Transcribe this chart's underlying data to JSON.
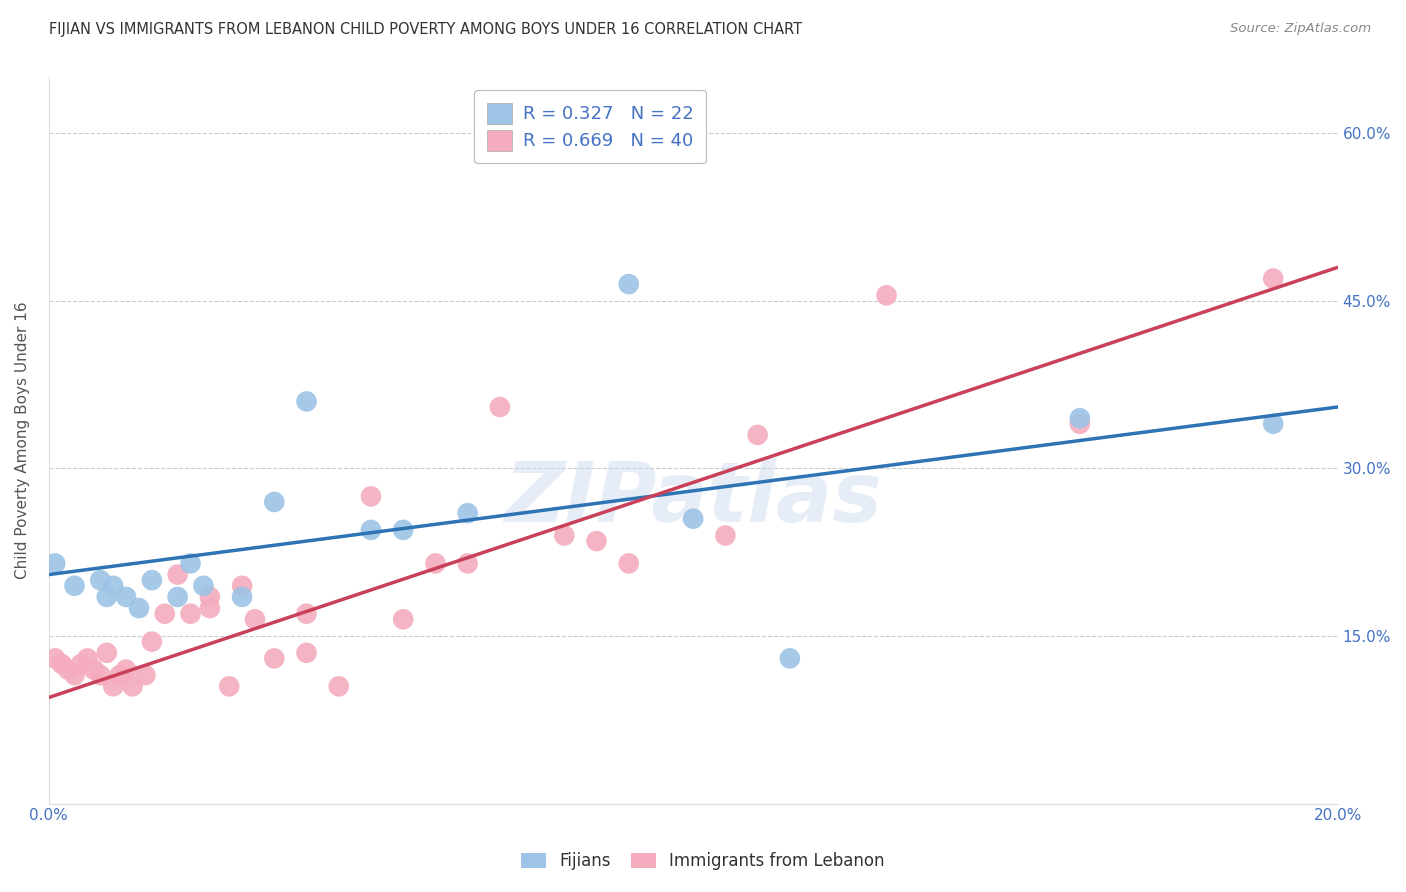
{
  "title": "FIJIAN VS IMMIGRANTS FROM LEBANON CHILD POVERTY AMONG BOYS UNDER 16 CORRELATION CHART",
  "source": "Source: ZipAtlas.com",
  "ylabel": "Child Poverty Among Boys Under 16",
  "xlim": [
    0.0,
    0.2
  ],
  "ylim": [
    0.0,
    0.65
  ],
  "ytick_vals": [
    0.0,
    0.15,
    0.3,
    0.45,
    0.6
  ],
  "xtick_vals": [
    0.0,
    0.02,
    0.04,
    0.06,
    0.08,
    0.1,
    0.12,
    0.14,
    0.16,
    0.18,
    0.2
  ],
  "fijian_R": 0.327,
  "fijian_N": 22,
  "lebanon_R": 0.669,
  "lebanon_N": 40,
  "fijian_color": "#9DC3E6",
  "lebanon_color": "#F4ACBE",
  "fijian_line_color": "#2E74B5",
  "lebanon_line_color": "#C9405A",
  "background_color": "#FFFFFF",
  "grid_color": "#CCCCCC",
  "watermark_text": "ZIPatlas",
  "title_fontsize": 10.5,
  "axis_label_fontsize": 11,
  "tick_fontsize": 11,
  "legend_fontsize": 13,
  "fijian_x": [
    0.001,
    0.004,
    0.008,
    0.009,
    0.01,
    0.012,
    0.014,
    0.016,
    0.02,
    0.022,
    0.024,
    0.03,
    0.035,
    0.04,
    0.05,
    0.055,
    0.065,
    0.09,
    0.1,
    0.115,
    0.16,
    0.19
  ],
  "fijian_y": [
    0.215,
    0.195,
    0.2,
    0.185,
    0.195,
    0.185,
    0.175,
    0.2,
    0.185,
    0.215,
    0.195,
    0.185,
    0.27,
    0.36,
    0.245,
    0.245,
    0.26,
    0.465,
    0.255,
    0.13,
    0.345,
    0.34
  ],
  "lebanon_x": [
    0.001,
    0.002,
    0.003,
    0.004,
    0.005,
    0.006,
    0.007,
    0.008,
    0.009,
    0.01,
    0.011,
    0.012,
    0.013,
    0.015,
    0.016,
    0.018,
    0.02,
    0.022,
    0.025,
    0.025,
    0.028,
    0.03,
    0.032,
    0.035,
    0.04,
    0.04,
    0.045,
    0.05,
    0.055,
    0.06,
    0.065,
    0.07,
    0.08,
    0.085,
    0.09,
    0.105,
    0.11,
    0.13,
    0.16,
    0.19
  ],
  "lebanon_y": [
    0.13,
    0.125,
    0.12,
    0.115,
    0.125,
    0.13,
    0.12,
    0.115,
    0.135,
    0.105,
    0.115,
    0.12,
    0.105,
    0.115,
    0.145,
    0.17,
    0.205,
    0.17,
    0.185,
    0.175,
    0.105,
    0.195,
    0.165,
    0.13,
    0.135,
    0.17,
    0.105,
    0.275,
    0.165,
    0.215,
    0.215,
    0.355,
    0.24,
    0.235,
    0.215,
    0.24,
    0.33,
    0.455,
    0.34,
    0.47
  ],
  "fijian_line_x0": 0.0,
  "fijian_line_y0": 0.205,
  "fijian_line_x1": 0.2,
  "fijian_line_y1": 0.355,
  "lebanon_line_x0": 0.0,
  "lebanon_line_y0": 0.095,
  "lebanon_line_x1": 0.2,
  "lebanon_line_y1": 0.48
}
